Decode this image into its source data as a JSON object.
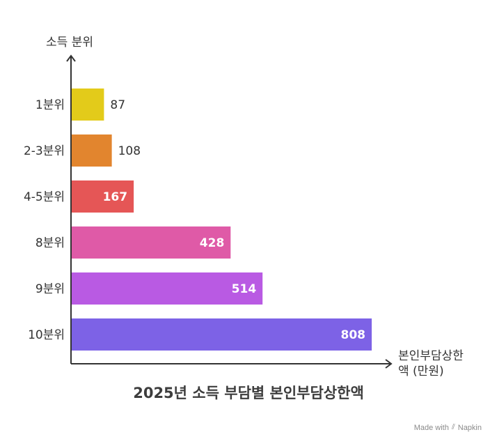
{
  "chart_data": {
    "type": "bar",
    "orientation": "horizontal",
    "title": "2025년 소득 부담별 본인부담상한액",
    "ylabel": "소득 분위",
    "xlabel_lines": [
      "본인부담상한",
      "액 (만원)"
    ],
    "categories": [
      "1분위",
      "2-3분위",
      "4-5분위",
      "8분위",
      "9분위",
      "10분위"
    ],
    "values": [
      87,
      108,
      167,
      428,
      514,
      808
    ],
    "colors": [
      "#e3cb1a",
      "#e2852e",
      "#e55656",
      "#df5aa7",
      "#b95ae3",
      "#7d62e6"
    ],
    "label_inside": [
      false,
      false,
      true,
      true,
      true,
      true
    ],
    "xlim": [
      0,
      808
    ],
    "grid": false
  },
  "watermark": {
    "made_with": "Made with",
    "brand": "Napkin"
  }
}
